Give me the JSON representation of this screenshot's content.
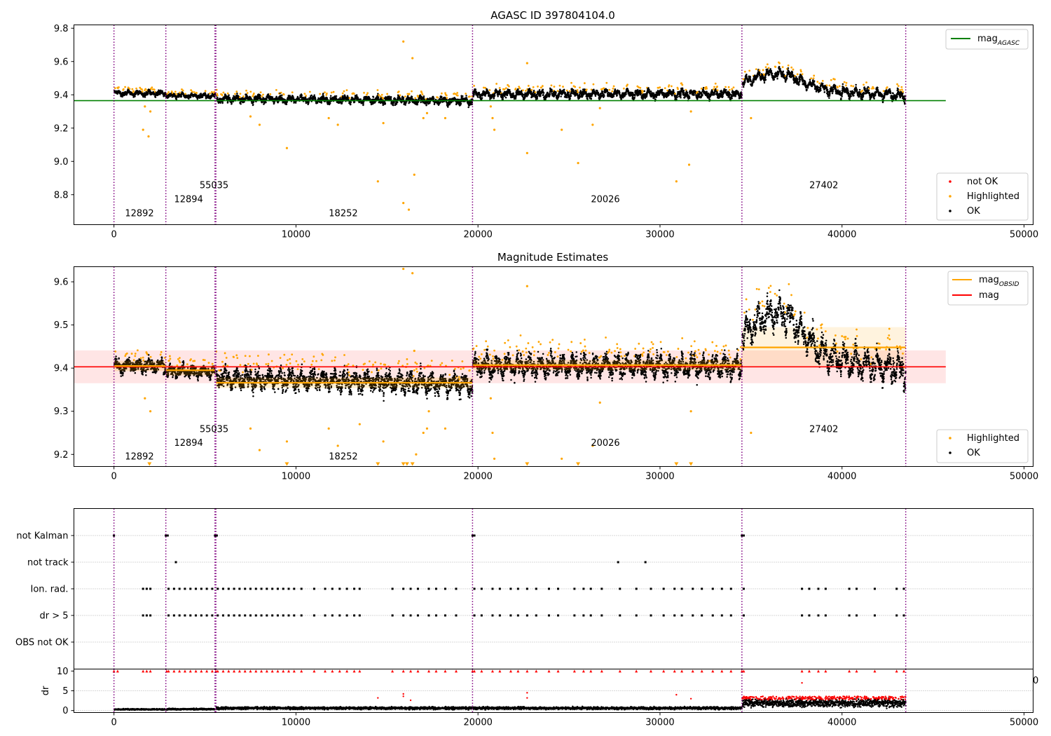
{
  "chart_data": [
    {
      "type": "scatter",
      "title": "AGASC ID 397804104.0",
      "xlim": [
        -2200,
        50500
      ],
      "ylim": [
        8.62,
        9.82
      ],
      "xticks": [
        "0",
        "10000",
        "20000",
        "30000",
        "40000",
        "50000"
      ],
      "xtick_values": [
        0,
        10000,
        20000,
        30000,
        40000,
        50000
      ],
      "yticks": [
        "8.8",
        "9.0",
        "9.2",
        "9.4",
        "9.6",
        "9.8"
      ],
      "ytick_values": [
        8.8,
        9.0,
        9.2,
        9.4,
        9.6,
        9.8
      ],
      "obsid_boundaries": [
        0,
        2850,
        5550,
        5600,
        19700,
        34500,
        43500
      ],
      "obsid_labels": [
        {
          "text": "12892",
          "x": 1400,
          "y": 8.67
        },
        {
          "text": "12894",
          "x": 4100,
          "y": 8.755
        },
        {
          "text": "55035",
          "x": 5500,
          "y": 8.84
        },
        {
          "text": "18252",
          "x": 12600,
          "y": 8.67
        },
        {
          "text": "20026",
          "x": 27000,
          "y": 8.755
        },
        {
          "text": "27402",
          "x": 39000,
          "y": 8.84
        }
      ],
      "mag_agasc": 9.365,
      "mag_agasc_xrange": [
        -2200,
        45700
      ],
      "segments": [
        {
          "x0": 0,
          "x1": 2850,
          "mean": 9.41,
          "amp": 0.012,
          "spread": 0.012
        },
        {
          "x0": 2850,
          "x1": 5550,
          "mean": 9.394,
          "amp": 0.01,
          "spread": 0.01
        },
        {
          "x0": 5600,
          "x1": 19700,
          "mean": 9.37,
          "amp": 0.018,
          "spread": 0.016,
          "slope": -0.015
        },
        {
          "x0": 19700,
          "x1": 34500,
          "mean": 9.405,
          "amp": 0.022,
          "spread": 0.016
        },
        {
          "x0": 34500,
          "x1": 43500,
          "mean": 9.45,
          "amp": 0.03,
          "spread": 0.018,
          "trend": "hump"
        }
      ],
      "highlighted_points": [
        [
          1600,
          9.19
        ],
        [
          1900,
          9.15
        ],
        [
          2000,
          9.3
        ],
        [
          1700,
          9.33
        ],
        [
          9500,
          9.08
        ],
        [
          7500,
          9.27
        ],
        [
          8000,
          9.22
        ],
        [
          11800,
          9.26
        ],
        [
          12300,
          9.22
        ],
        [
          14500,
          8.88
        ],
        [
          14800,
          9.23
        ],
        [
          15900,
          9.72
        ],
        [
          16400,
          9.62
        ],
        [
          16500,
          8.92
        ],
        [
          15900,
          8.75
        ],
        [
          16200,
          8.71
        ],
        [
          17200,
          9.29
        ],
        [
          17000,
          9.26
        ],
        [
          18200,
          9.26
        ],
        [
          20800,
          9.26
        ],
        [
          20900,
          9.19
        ],
        [
          22700,
          9.59
        ],
        [
          22700,
          9.05
        ],
        [
          24600,
          9.19
        ],
        [
          25500,
          8.99
        ],
        [
          26300,
          9.22
        ],
        [
          26700,
          9.32
        ],
        [
          30900,
          8.88
        ],
        [
          31600,
          8.98
        ],
        [
          31700,
          9.3
        ],
        [
          35000,
          9.26
        ],
        [
          20700,
          9.33
        ]
      ],
      "legend_lines": [
        {
          "label": "mag",
          "sub": "AGASC",
          "color": "#008000"
        }
      ],
      "legend_markers": [
        {
          "label": "not OK",
          "color": "#ff0000"
        },
        {
          "label": "Highlighted",
          "color": "#ffa500"
        },
        {
          "label": "OK",
          "color": "#000000"
        }
      ]
    },
    {
      "type": "scatter",
      "title": "Magnitude Estimates",
      "xlim": [
        -2200,
        50500
      ],
      "ylim": [
        9.172,
        9.635
      ],
      "xticks": [
        "0",
        "10000",
        "20000",
        "30000",
        "40000",
        "50000"
      ],
      "xtick_values": [
        0,
        10000,
        20000,
        30000,
        40000,
        50000
      ],
      "yticks": [
        "9.2",
        "9.3",
        "9.4",
        "9.5",
        "9.6"
      ],
      "ytick_values": [
        9.2,
        9.3,
        9.4,
        9.5,
        9.6
      ],
      "obsid_boundaries": [
        0,
        2850,
        5550,
        5600,
        19700,
        34500,
        43500
      ],
      "obsid_labels": [
        {
          "text": "12892",
          "x": 1400,
          "y": 9.188
        },
        {
          "text": "12894",
          "x": 4100,
          "y": 9.22
        },
        {
          "text": "55035",
          "x": 5500,
          "y": 9.252
        },
        {
          "text": "18252",
          "x": 12600,
          "y": 9.188
        },
        {
          "text": "20026",
          "x": 27000,
          "y": 9.22
        },
        {
          "text": "27402",
          "x": 39000,
          "y": 9.252
        }
      ],
      "mag": 9.403,
      "mag_band": [
        9.365,
        9.441
      ],
      "mag_xrange": [
        -2200,
        45700
      ],
      "mag_obsid": [
        {
          "x0": 0,
          "x1": 2850,
          "mag": 9.405
        },
        {
          "x0": 2850,
          "x1": 5550,
          "mag": 9.395
        },
        {
          "x0": 5600,
          "x1": 19700,
          "mag": 9.366
        },
        {
          "x0": 19700,
          "x1": 34500,
          "mag": 9.407
        },
        {
          "x0": 34500,
          "x1": 43500,
          "mag": 9.448,
          "band": [
            9.403,
            9.495
          ]
        }
      ],
      "segments": [
        {
          "x0": 0,
          "x1": 2850,
          "mean": 9.405,
          "amp": 0.012,
          "spread": 0.012
        },
        {
          "x0": 2850,
          "x1": 5550,
          "mean": 9.392,
          "amp": 0.01,
          "spread": 0.01
        },
        {
          "x0": 5600,
          "x1": 19700,
          "mean": 9.37,
          "amp": 0.018,
          "spread": 0.018,
          "slope": -0.015
        },
        {
          "x0": 19700,
          "x1": 34500,
          "mean": 9.405,
          "amp": 0.022,
          "spread": 0.018
        },
        {
          "x0": 34500,
          "x1": 43500,
          "mean": 9.45,
          "amp": 0.035,
          "spread": 0.02,
          "trend": "hump"
        }
      ],
      "highlighted_points": [
        [
          1700,
          9.33
        ],
        [
          2000,
          9.3
        ],
        [
          9500,
          9.23
        ],
        [
          7500,
          9.26
        ],
        [
          8000,
          9.21
        ],
        [
          11800,
          9.26
        ],
        [
          12300,
          9.22
        ],
        [
          13500,
          9.27
        ],
        [
          14800,
          9.23
        ],
        [
          15900,
          9.63
        ],
        [
          16400,
          9.62
        ],
        [
          16500,
          9.44
        ],
        [
          17200,
          9.26
        ],
        [
          17000,
          9.25
        ],
        [
          17300,
          9.3
        ],
        [
          18200,
          9.26
        ],
        [
          20800,
          9.25
        ],
        [
          20900,
          9.19
        ],
        [
          22700,
          9.59
        ],
        [
          24600,
          9.19
        ],
        [
          26300,
          9.22
        ],
        [
          26700,
          9.32
        ],
        [
          31700,
          9.3
        ],
        [
          35000,
          9.25
        ],
        [
          20700,
          9.33
        ],
        [
          16600,
          9.2
        ]
      ],
      "offscale_markers": [
        1950,
        9500,
        14500,
        15900,
        16100,
        16400,
        22700,
        25500,
        30900,
        31700
      ],
      "legend_lines": [
        {
          "label": "mag",
          "sub": "OBSID",
          "color": "#ffa500"
        },
        {
          "label": "mag",
          "sub": "",
          "color": "#ff0000"
        }
      ],
      "legend_markers": [
        {
          "label": "Highlighted",
          "color": "#ffa500"
        },
        {
          "label": "OK",
          "color": "#000000"
        }
      ]
    },
    {
      "type": "scatter",
      "title": "",
      "xlim": [
        -2200,
        50500
      ],
      "categories": [
        "not Kalman",
        "not track",
        "Ion. rad.",
        "dr > 5",
        "OBS not OK"
      ],
      "flags": {
        "not Kalman": [
          0,
          2850,
          2950,
          5550,
          5650,
          19700,
          19800,
          34500,
          34600
        ],
        "not track": [
          3400,
          27700,
          29200
        ],
        "Ion. rad.": [
          1600,
          1800,
          2000,
          3000,
          3300,
          3600,
          3900,
          4200,
          4500,
          4800,
          5100,
          5400,
          5700,
          6000,
          6300,
          6600,
          6900,
          7200,
          7500,
          7800,
          8100,
          8400,
          8700,
          9000,
          9300,
          9600,
          9900,
          10300,
          11000,
          11600,
          12000,
          12400,
          12800,
          13200,
          13500,
          15300,
          15900,
          16300,
          16700,
          17300,
          17700,
          18200,
          18800,
          19800,
          20200,
          20800,
          21200,
          21800,
          22200,
          22700,
          23200,
          23900,
          24400,
          25300,
          25800,
          26200,
          26800,
          27800,
          28700,
          29500,
          30200,
          30800,
          31200,
          31800,
          32300,
          32900,
          33400,
          33900,
          34600,
          37800,
          38200,
          38700,
          39100,
          40400,
          40800,
          41800,
          43000,
          43400
        ],
        "dr > 5": [
          1600,
          1800,
          2000,
          3000,
          3300,
          3600,
          3900,
          4200,
          4500,
          4800,
          5100,
          5400,
          5700,
          6000,
          6300,
          6600,
          6900,
          7200,
          7500,
          7800,
          8100,
          8400,
          8700,
          9000,
          9300,
          9600,
          9900,
          10300,
          11000,
          11600,
          12000,
          12400,
          12800,
          13200,
          13500,
          15300,
          15900,
          16300,
          16700,
          17300,
          17700,
          18200,
          18800,
          19800,
          20200,
          20800,
          21200,
          21800,
          22200,
          22700,
          23200,
          23900,
          24400,
          25300,
          25800,
          26200,
          26800,
          27800,
          28700,
          29500,
          30200,
          30800,
          31200,
          31800,
          32300,
          32900,
          33400,
          33900,
          34600,
          37800,
          38200,
          38700,
          39100,
          40400,
          40800,
          41800,
          43000,
          43400
        ],
        "OBS not OK": []
      },
      "obsid_boundaries": [
        0,
        2850,
        5550,
        5600,
        19700,
        34500,
        43500
      ]
    },
    {
      "type": "scatter",
      "title": "",
      "ylabel": "dr",
      "xlim": [
        -2200,
        50500
      ],
      "ylim": [
        -0.5,
        10.5
      ],
      "xticks": [
        "0",
        "10000",
        "20000",
        "30000",
        "40000",
        "50000"
      ],
      "xtick_values": [
        0,
        10000,
        20000,
        30000,
        40000,
        50000
      ],
      "yticks": [
        "0",
        "5",
        "10"
      ],
      "ytick_values": [
        0,
        5,
        10
      ],
      "stray_label": "0",
      "obsid_boundaries": [
        0,
        2850,
        5550,
        5600,
        19700,
        34500,
        43500
      ],
      "segments": [
        {
          "x0": 0,
          "x1": 2850,
          "mean": 0.3
        },
        {
          "x0": 2850,
          "x1": 5550,
          "mean": 0.35
        },
        {
          "x0": 5600,
          "x1": 19700,
          "mean": 0.6
        },
        {
          "x0": 19700,
          "x1": 34500,
          "mean": 0.6
        },
        {
          "x0": 34500,
          "x1": 43500,
          "mean": 1.9
        }
      ],
      "red_cap_points": [
        0,
        200,
        1600,
        1800,
        2000,
        2900,
        3000,
        3300,
        3600,
        3900,
        4200,
        4500,
        4800,
        5100,
        5400,
        5600,
        5700,
        6000,
        6300,
        6600,
        6900,
        7200,
        7500,
        7800,
        8100,
        8400,
        8700,
        9000,
        9300,
        9600,
        9900,
        10300,
        11000,
        11600,
        12000,
        12400,
        12800,
        13200,
        13500,
        15300,
        15900,
        16300,
        16700,
        17300,
        17700,
        18200,
        18800,
        19700,
        19800,
        20200,
        20800,
        21200,
        21800,
        22200,
        22700,
        23200,
        23900,
        24400,
        25300,
        25800,
        26200,
        26800,
        27800,
        28700,
        29500,
        30200,
        30800,
        31200,
        31800,
        32300,
        32900,
        33400,
        33900,
        34500,
        34600,
        37800,
        38200,
        38700,
        39100,
        40400,
        40800,
        41800,
        43000,
        43400
      ],
      "red_points": [
        [
          15900,
          4.2
        ],
        [
          15900,
          3.6
        ],
        [
          22700,
          4.5
        ],
        [
          22700,
          3.2
        ],
        [
          30900,
          4.0
        ],
        [
          31700,
          3.0
        ],
        [
          37800,
          7.0
        ],
        [
          16300,
          2.6
        ],
        [
          14500,
          3.2
        ]
      ]
    }
  ]
}
